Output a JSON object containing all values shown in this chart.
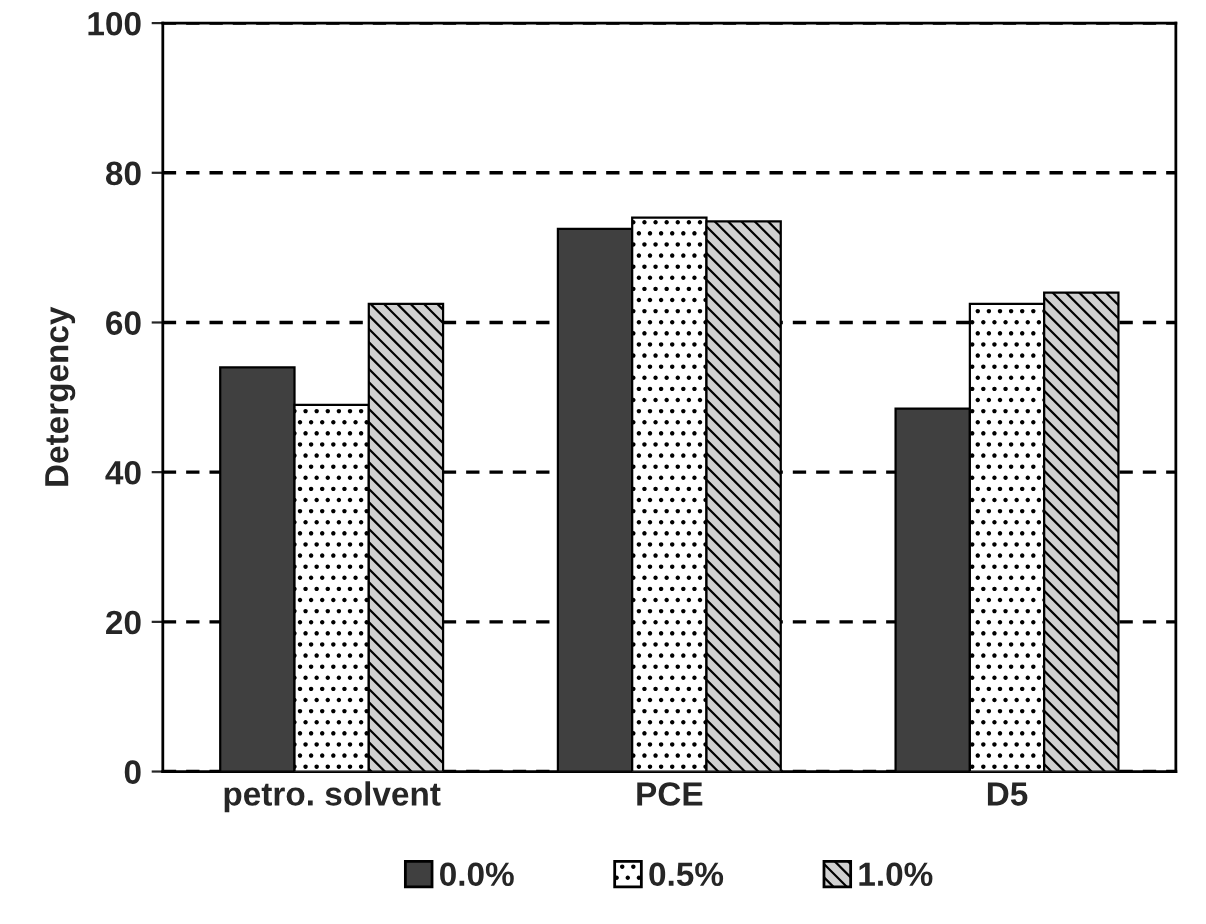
{
  "chart_data": {
    "type": "bar",
    "ylabel": "Detergency",
    "categories": [
      "petro. solvent",
      "PCE",
      "D5"
    ],
    "series": [
      {
        "name": "0.0%",
        "color": "#404040",
        "values": [
          54,
          72.5,
          48.5
        ]
      },
      {
        "name": "0.5%",
        "color": "#ffffff",
        "values": [
          49,
          74,
          62.5
        ]
      },
      {
        "name": "1.0%",
        "color": "#d0d0d0",
        "values": [
          62.5,
          73.5,
          64
        ]
      }
    ],
    "ylim": [
      0,
      100
    ],
    "yticks": [
      0,
      20,
      40,
      60,
      80,
      100
    ],
    "grid": "y",
    "legend": "bottom"
  }
}
